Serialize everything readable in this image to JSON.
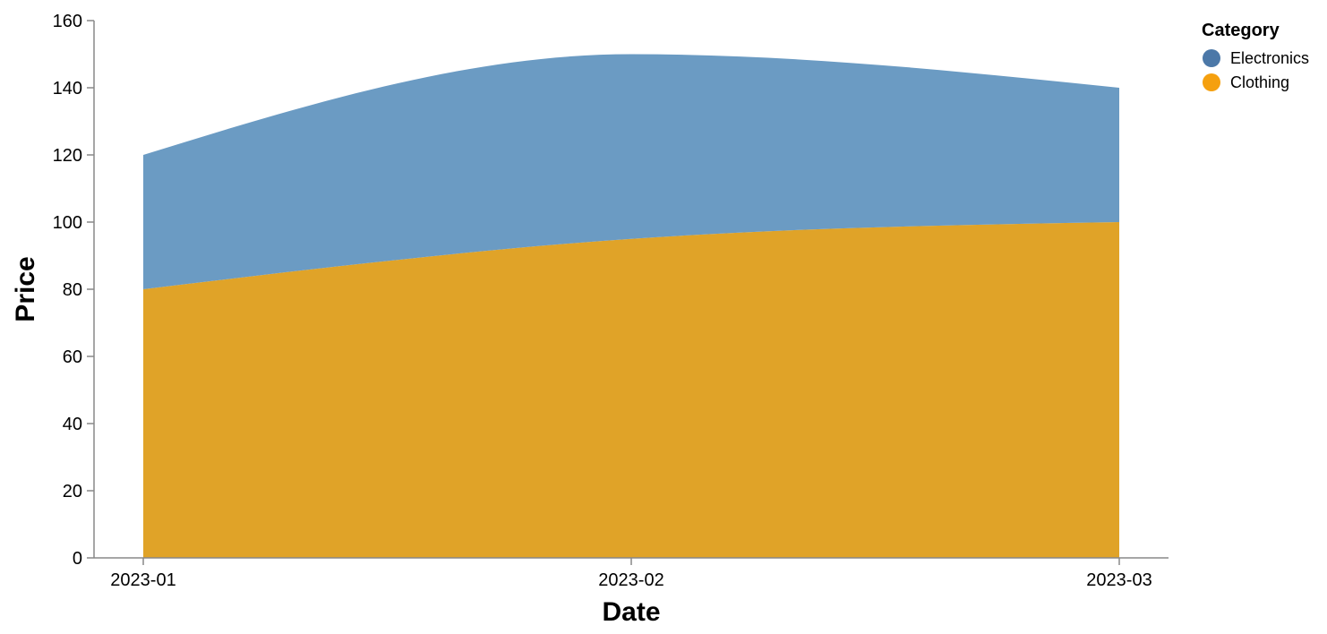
{
  "chart_data": {
    "type": "area",
    "stacked": true,
    "x": [
      "2023-01",
      "2023-02",
      "2023-03"
    ],
    "series": [
      {
        "name": "Clothing",
        "values": [
          80,
          95,
          100
        ],
        "color": "#e0a328"
      },
      {
        "name": "Electronics",
        "values": [
          40,
          55,
          40
        ],
        "color": "#6b9bc3"
      }
    ],
    "xlabel": "Date",
    "ylabel": "Price",
    "ylim": [
      0,
      160
    ],
    "yticks": [
      0,
      20,
      40,
      60,
      80,
      100,
      120,
      140,
      160
    ],
    "grid": false,
    "legend": {
      "title": "Category",
      "placement": "top-right",
      "items": [
        {
          "label": "Electronics",
          "color": "#4c78a8"
        },
        {
          "label": "Clothing",
          "color": "#f5a00f"
        }
      ]
    }
  }
}
